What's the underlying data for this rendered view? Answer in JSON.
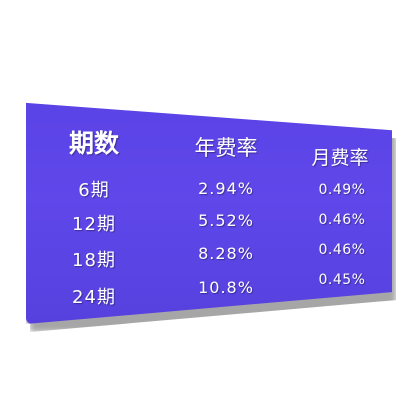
{
  "table": {
    "headers": [
      "期数",
      "年费率",
      "月费率"
    ],
    "rows": [
      [
        "6期",
        "2.94%",
        "0.49%"
      ],
      [
        "12期",
        "5.52%",
        "0.46%"
      ],
      [
        "18期",
        "8.28%",
        "0.46%"
      ],
      [
        "24期",
        "10.8%",
        "0.45%"
      ]
    ]
  },
  "colors": {
    "panel": "#5a43e6",
    "text": "#ffffff"
  }
}
